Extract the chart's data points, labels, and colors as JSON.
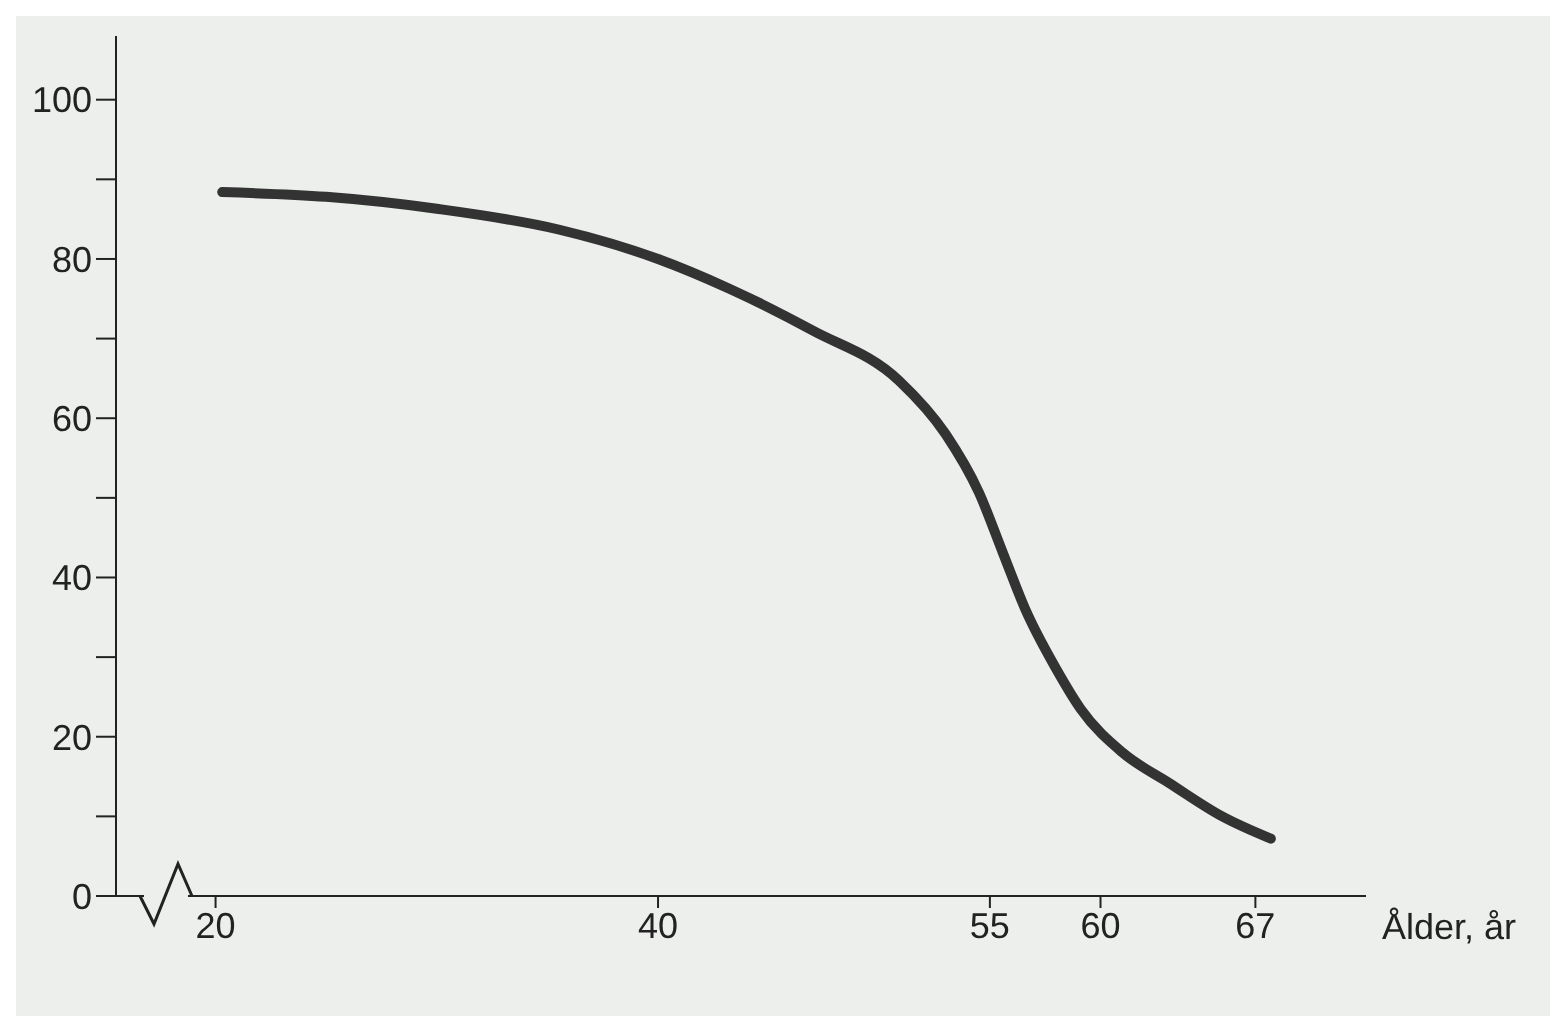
{
  "chart_data": {
    "type": "line",
    "xlabel": "Ålder, år",
    "x": [
      20.3,
      25,
      30,
      35.5,
      40,
      43.2,
      47,
      50.9,
      53,
      54.5,
      55.6,
      56.6,
      58,
      59.1,
      61,
      63.1,
      65.5,
      67.7
    ],
    "series": [
      {
        "color": "#333333",
        "values": [
          88.4,
          87.8,
          86.3,
          83.7,
          80,
          76.3,
          71,
          64.7,
          58,
          50.7,
          43,
          36,
          28.5,
          23.5,
          18,
          14.2,
          10,
          7.2
        ]
      }
    ],
    "xlim": [
      15.5,
      72
    ],
    "xticks": [
      20,
      40,
      55,
      60,
      67
    ],
    "ylim": [
      0,
      108
    ],
    "yticks": [
      0,
      {
        "value": 10,
        "label": null
      },
      20,
      {
        "value": 30,
        "label": null
      },
      40,
      {
        "value": 50,
        "label": null
      },
      60,
      {
        "value": 70,
        "label": null
      },
      80,
      {
        "value": 90,
        "label": null
      },
      100
    ],
    "marker": "none",
    "line_style": "solid",
    "grid": false,
    "legend": false
  }
}
